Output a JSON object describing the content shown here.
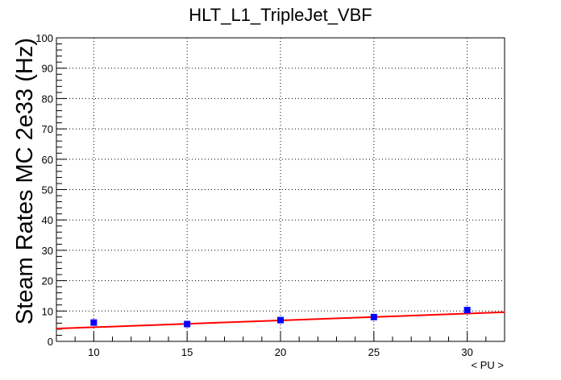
{
  "chart_data": {
    "type": "scatter",
    "title": "HLT_L1_TripleJet_VBF",
    "xlabel": "< PU >",
    "ylabel": "Steam Rates MC 2e33 (Hz)",
    "xlim": [
      8,
      32
    ],
    "ylim": [
      0,
      100
    ],
    "x_ticks": [
      10,
      15,
      20,
      25,
      30
    ],
    "y_ticks": [
      0,
      10,
      20,
      30,
      40,
      50,
      60,
      70,
      80,
      90,
      100
    ],
    "grid": true,
    "legend": "none",
    "series": [
      {
        "x": [
          10,
          15,
          20,
          25,
          30
        ],
        "y": [
          6.2,
          5.7,
          7.0,
          8.0,
          10.3
        ],
        "marker": "square",
        "color": "#0000ff"
      }
    ],
    "fit": {
      "kind": "linear",
      "x": [
        8,
        32
      ],
      "y": [
        4.2,
        9.6
      ],
      "color": "#ff0000"
    }
  }
}
